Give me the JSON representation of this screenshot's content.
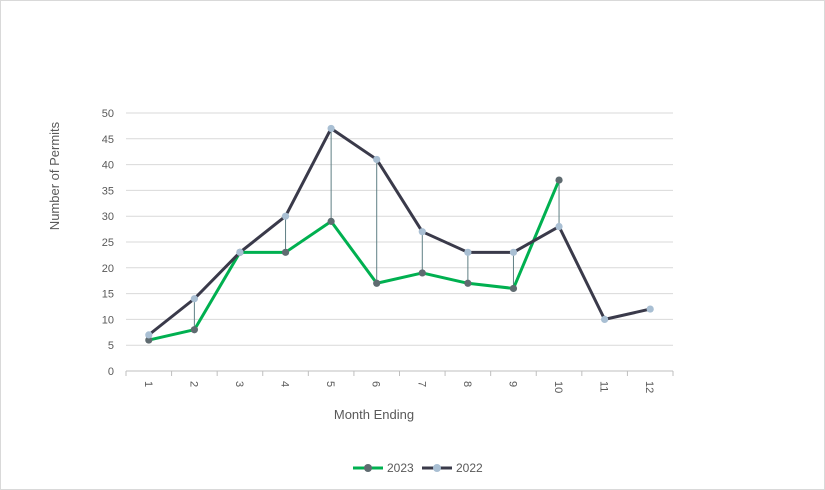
{
  "chart_data": {
    "type": "line",
    "title": "",
    "xlabel": "Month Ending",
    "ylabel": "Number of Permits",
    "categories": [
      "1",
      "2",
      "3",
      "4",
      "5",
      "6",
      "7",
      "8",
      "9",
      "10",
      "11",
      "12"
    ],
    "ylim": [
      0,
      50
    ],
    "y_ticks": [
      0,
      5,
      10,
      15,
      20,
      25,
      30,
      35,
      40,
      45,
      50
    ],
    "grid": "horizontal",
    "legend_position": "bottom",
    "series": [
      {
        "name": "2023",
        "values": [
          6,
          8,
          23,
          23,
          29,
          17,
          19,
          17,
          16,
          37,
          null,
          null
        ],
        "color": "#00b050",
        "marker_color": "#5f6b70"
      },
      {
        "name": "2022",
        "values": [
          7,
          14,
          23,
          30,
          47,
          41,
          27,
          23,
          23,
          28,
          10,
          12
        ],
        "color": "#3a3a4a",
        "marker_color": "#a9bfd3"
      }
    ],
    "drop_lines": true,
    "drop_line_color": "#5f7f84"
  }
}
